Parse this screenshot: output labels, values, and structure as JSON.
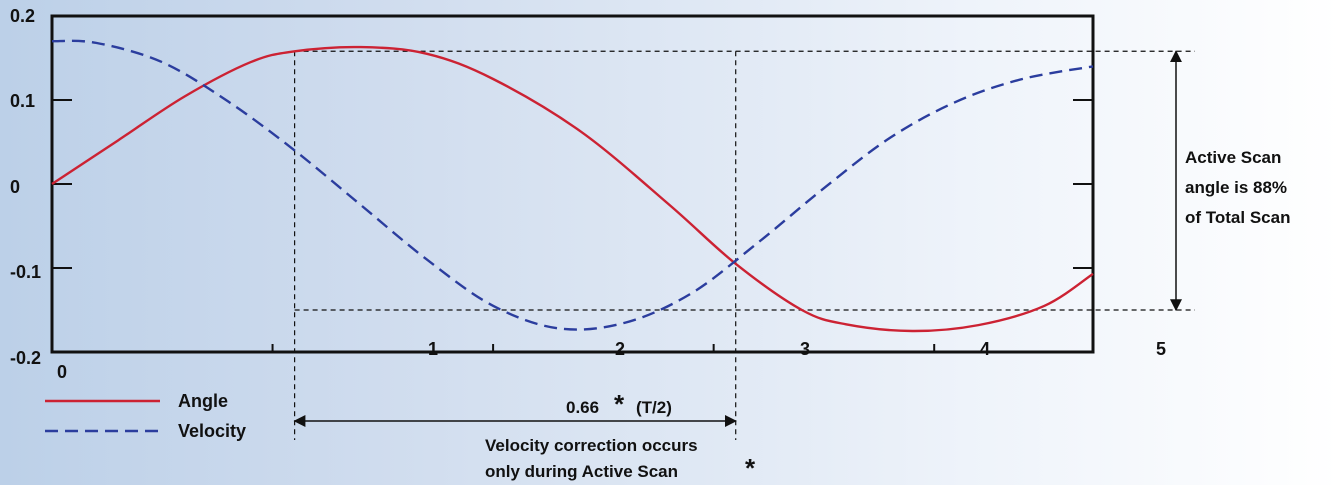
{
  "chart_data": {
    "type": "line",
    "title": "",
    "xlabel": "",
    "ylabel": "",
    "xlim": [
      0,
      4.72
    ],
    "ylim": [
      -0.2,
      0.2
    ],
    "x_tick_labels": [
      "0",
      "1",
      "2",
      "3",
      "4",
      "5"
    ],
    "y_tick_labels": [
      "0.2",
      "0.1",
      "0",
      "-0.1",
      "-0.2"
    ],
    "series": [
      {
        "name": "Angle",
        "color": "#cc2233",
        "style": "solid",
        "x": [
          0,
          0.3,
          0.6,
          0.9,
          1.1,
          1.4,
          1.7,
          2.0,
          2.4,
          2.8,
          3.1,
          3.4,
          3.6,
          3.9,
          4.2,
          4.5,
          4.72
        ],
        "y": [
          0,
          0.052,
          0.104,
          0.145,
          0.158,
          0.163,
          0.155,
          0.125,
          0.062,
          -0.025,
          -0.095,
          -0.15,
          -0.167,
          -0.175,
          -0.168,
          -0.145,
          -0.107
        ]
      },
      {
        "name": "Velocity",
        "color": "#2b3d9e",
        "style": "dashed",
        "x": [
          0,
          0.2,
          0.5,
          0.8,
          1.1,
          1.4,
          1.7,
          2.0,
          2.3,
          2.6,
          2.9,
          3.2,
          3.5,
          3.8,
          4.1,
          4.4,
          4.72
        ],
        "y": [
          0.17,
          0.168,
          0.145,
          0.098,
          0.04,
          -0.025,
          -0.09,
          -0.145,
          -0.172,
          -0.165,
          -0.13,
          -0.07,
          -0.005,
          0.055,
          0.098,
          0.125,
          0.14
        ]
      }
    ],
    "legend": {
      "placement": "bottom-left"
    },
    "annotations": {
      "active_scan": [
        "Active Scan",
        "angle is 88%",
        "of Total Scan"
      ],
      "interval_label": "0.66",
      "interval_star": "*",
      "interval_suffix": "(T/2)",
      "correction": [
        "Velocity correction occurs",
        "only during Active Scan"
      ],
      "correction_star": "*"
    },
    "markers": {
      "active_start_x": 1.1,
      "active_end_x": 3.1,
      "active_top_y": 0.158,
      "active_bottom_y": -0.15
    }
  }
}
